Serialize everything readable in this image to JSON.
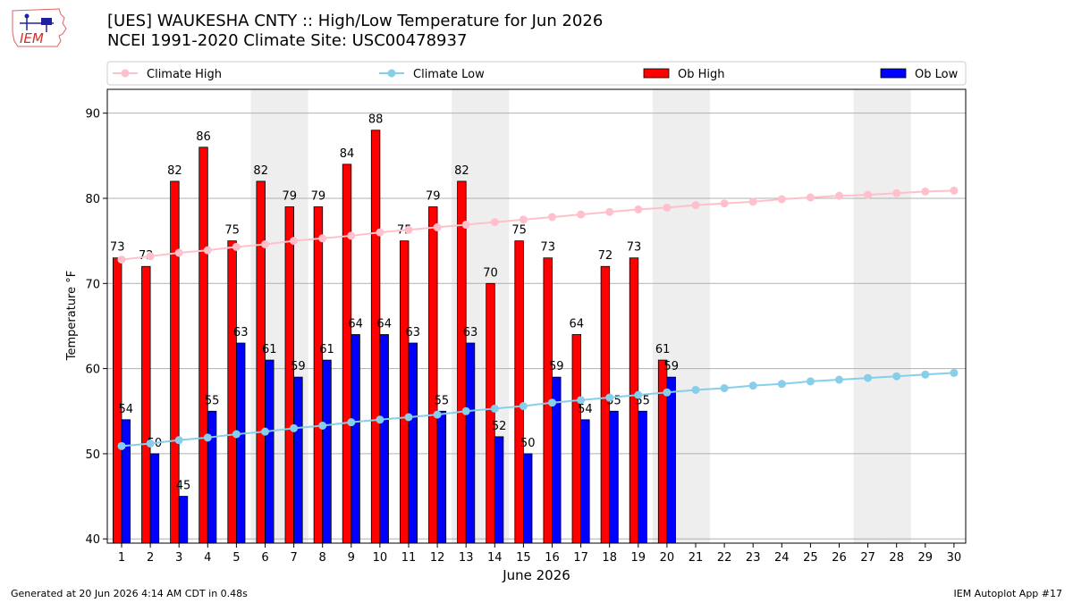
{
  "header": {
    "title_line1": "[UES] WAUKESHA CNTY :: High/Low Temperature for Jun 2026",
    "title_line2": "NCEI 1991-2020 Climate Site: USC00478937"
  },
  "logo": {
    "text": "IEM"
  },
  "footer": {
    "generated": "Generated at 20 Jun 2026 4:14 AM CDT in 0.48s",
    "app": "IEM Autoplot App #17"
  },
  "colors": {
    "ob_high": "#ff0000",
    "ob_low": "#0000ff",
    "climate_high": "#ffc0cb",
    "climate_low": "#87ceeb",
    "weekend_shade": "#eeeeee"
  },
  "chart_data": {
    "type": "bar",
    "xlabel": "June 2026",
    "ylabel": "Temperature °F",
    "ylim": [
      39.5,
      92.8
    ],
    "yticks": [
      40,
      50,
      60,
      70,
      80,
      90
    ],
    "days": [
      1,
      2,
      3,
      4,
      5,
      6,
      7,
      8,
      9,
      10,
      11,
      12,
      13,
      14,
      15,
      16,
      17,
      18,
      19,
      20,
      21,
      22,
      23,
      24,
      25,
      26,
      27,
      28,
      29,
      30
    ],
    "weekend_days": [
      6,
      7,
      13,
      14,
      20,
      21,
      27,
      28
    ],
    "grid": true,
    "legend_position": "top",
    "legend": [
      "Climate High",
      "Climate Low",
      "Ob High",
      "Ob Low"
    ],
    "series": [
      {
        "name": "Ob High",
        "kind": "bar",
        "values": [
          73,
          72,
          82,
          86,
          75,
          82,
          79,
          79,
          84,
          88,
          75,
          79,
          82,
          70,
          75,
          73,
          64,
          72,
          73,
          61
        ]
      },
      {
        "name": "Ob Low",
        "kind": "bar",
        "values": [
          54,
          50,
          45,
          55,
          63,
          61,
          59,
          61,
          64,
          64,
          63,
          55,
          63,
          52,
          50,
          59,
          54,
          55,
          55,
          59
        ]
      },
      {
        "name": "Climate High",
        "kind": "line",
        "values": [
          72.8,
          73.2,
          73.6,
          73.9,
          74.3,
          74.6,
          75.0,
          75.3,
          75.6,
          76.0,
          76.3,
          76.6,
          76.9,
          77.2,
          77.5,
          77.8,
          78.1,
          78.4,
          78.7,
          78.9,
          79.2,
          79.4,
          79.6,
          79.9,
          80.1,
          80.3,
          80.4,
          80.6,
          80.8,
          80.9
        ]
      },
      {
        "name": "Climate Low",
        "kind": "line",
        "values": [
          50.9,
          51.2,
          51.6,
          51.9,
          52.3,
          52.6,
          53.0,
          53.3,
          53.7,
          54.0,
          54.3,
          54.6,
          55.0,
          55.3,
          55.6,
          56.0,
          56.3,
          56.6,
          56.9,
          57.2,
          57.5,
          57.7,
          58.0,
          58.2,
          58.5,
          58.7,
          58.9,
          59.1,
          59.3,
          59.5
        ]
      }
    ]
  }
}
